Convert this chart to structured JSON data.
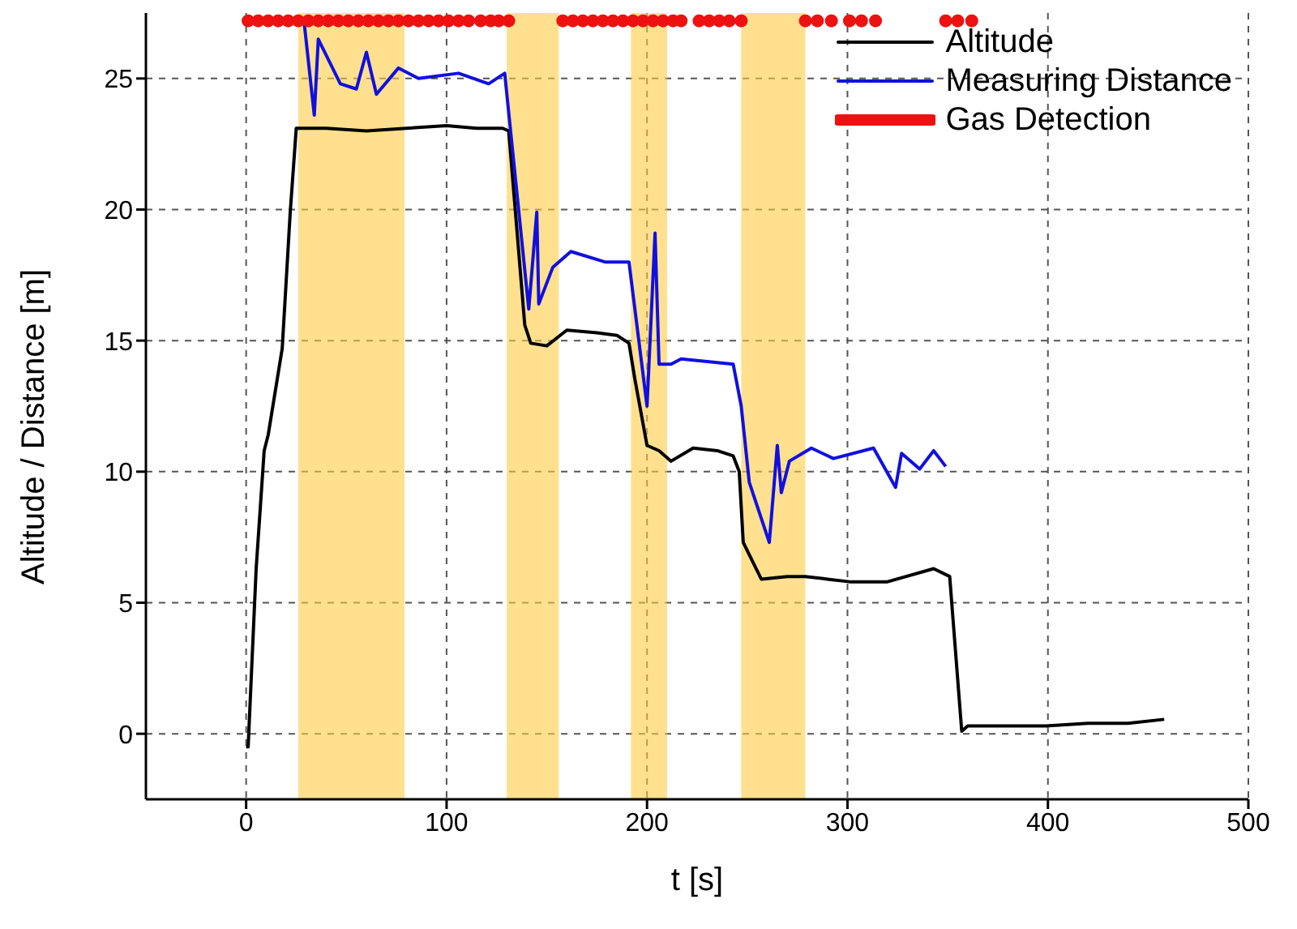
{
  "chart_data": {
    "type": "line",
    "xlabel": "t [s]",
    "ylabel": "Altitude / Distance [m]",
    "xlim": [
      -50,
      500
    ],
    "xticks": [
      0,
      100,
      200,
      300,
      400,
      500
    ],
    "ylim": [
      -2.5,
      27.5
    ],
    "yticks": [
      0,
      5,
      10,
      15,
      20,
      25
    ],
    "grid": true,
    "legend": "top right",
    "line_style": "solid",
    "bands": [
      {
        "axis": "x",
        "from": 26,
        "to": 79,
        "color": "#ffcc44"
      },
      {
        "axis": "x",
        "from": 130,
        "to": 156,
        "color": "#ffcc44"
      },
      {
        "axis": "x",
        "from": 192,
        "to": 210,
        "color": "#ffcc44"
      },
      {
        "axis": "x",
        "from": 247,
        "to": 279,
        "color": "#ffcc44"
      }
    ],
    "series": [
      {
        "name": "Altitude",
        "color": "#000000",
        "x": [
          0,
          1,
          5,
          9,
          11,
          18,
          22,
          25,
          40,
          60,
          80,
          100,
          115,
          128,
          131,
          139,
          142,
          150,
          160,
          175,
          185,
          191,
          194,
          200,
          206,
          212,
          223,
          235,
          243,
          246,
          248,
          257,
          270,
          279,
          290,
          301,
          320,
          343,
          351,
          357,
          360,
          380,
          399,
          420,
          440,
          458
        ],
        "values": [
          -0.5,
          -0.5,
          6.3,
          10.8,
          11.4,
          14.7,
          19.9,
          23.1,
          23.1,
          23,
          23.1,
          23.2,
          23.1,
          23.1,
          23,
          15.6,
          14.9,
          14.8,
          15.4,
          15.3,
          15.2,
          14.9,
          13.5,
          11,
          10.8,
          10.4,
          10.9,
          10.8,
          10.6,
          10,
          7.3,
          5.9,
          6,
          6,
          5.9,
          5.8,
          5.8,
          6.3,
          6,
          0.1,
          0.3,
          0.3,
          0.3,
          0.4,
          0.4,
          0.55
        ]
      },
      {
        "name": "Measuring Distance",
        "color": "#1010e0",
        "x": [
          29,
          34,
          36,
          47,
          55,
          60,
          65,
          76,
          86,
          106,
          121,
          129,
          141,
          145,
          146,
          153,
          162,
          179,
          191,
          200,
          204,
          206,
          212,
          217,
          243,
          247,
          251,
          261,
          265,
          267,
          271,
          282,
          293,
          313,
          324,
          327,
          336,
          343,
          349
        ],
        "values": [
          27.1,
          23.6,
          26.5,
          24.8,
          24.6,
          26,
          24.4,
          25.4,
          25,
          25.2,
          24.8,
          25.2,
          16.2,
          19.9,
          16.4,
          17.8,
          18.4,
          18,
          18,
          12.5,
          19.1,
          14.1,
          14.1,
          14.3,
          14.1,
          12.5,
          9.6,
          7.3,
          11,
          9.2,
          10.4,
          10.9,
          10.5,
          10.9,
          9.4,
          10.7,
          10.1,
          10.8,
          10.2
        ]
      },
      {
        "name": "Gas Detection",
        "type": "scatter",
        "color": "#ee1111",
        "x": [
          1,
          6,
          11,
          16,
          21,
          26,
          31,
          36,
          41,
          46,
          51,
          56,
          61,
          66,
          71,
          76,
          81,
          86,
          91,
          96,
          101,
          106,
          111,
          117,
          122,
          126,
          131,
          158,
          163,
          168,
          173,
          178,
          183,
          188,
          193,
          198,
          203,
          208,
          213,
          217,
          226,
          231,
          236,
          241,
          247,
          279,
          285,
          292,
          301,
          307,
          314,
          349,
          355,
          362
        ],
        "values": [
          27.2,
          27.2,
          27.2,
          27.2,
          27.2,
          27.2,
          27.2,
          27.2,
          27.2,
          27.2,
          27.2,
          27.2,
          27.2,
          27.2,
          27.2,
          27.2,
          27.2,
          27.2,
          27.2,
          27.2,
          27.2,
          27.2,
          27.2,
          27.2,
          27.2,
          27.2,
          27.2,
          27.2,
          27.2,
          27.2,
          27.2,
          27.2,
          27.2,
          27.2,
          27.2,
          27.2,
          27.2,
          27.2,
          27.2,
          27.2,
          27.2,
          27.2,
          27.2,
          27.2,
          27.2,
          27.2,
          27.2,
          27.2,
          27.2,
          27.2,
          27.2,
          27.2,
          27.2,
          27.2
        ]
      }
    ]
  }
}
